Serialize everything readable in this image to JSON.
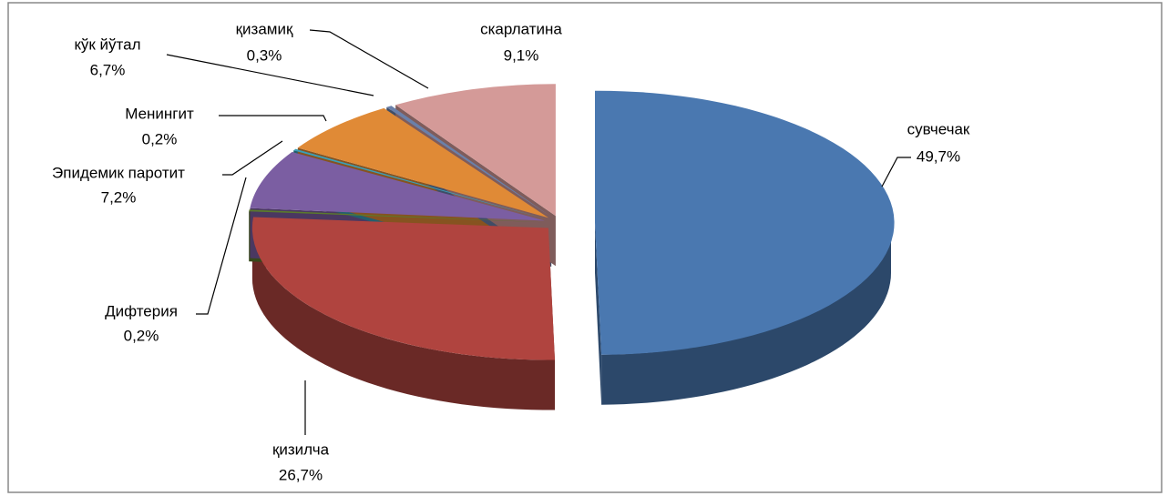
{
  "chart_data": {
    "type": "pie",
    "categories": [
      "сувчечак",
      "қизилча",
      "Дифтерия",
      "Эпидемик паротит",
      "Менингит",
      "кўк йўтал",
      "қизамиқ",
      "скарлатина"
    ],
    "values": [
      49.7,
      26.7,
      0.2,
      7.2,
      0.2,
      6.7,
      0.3,
      9.1
    ],
    "value_labels": [
      "49,7%",
      "26,7%",
      "0,2%",
      "7,2%",
      "0,2%",
      "6,7%",
      "0,3%",
      "9,1%"
    ],
    "colors": [
      "#4a78b0",
      "#b0443f",
      "#5b7a2c",
      "#7b5ea2",
      "#3a9fb8",
      "#e08a36",
      "#6a80aa",
      "#d49a98"
    ],
    "start_angle": 0,
    "direction": "clockwise",
    "exploded": true,
    "three_d": true
  }
}
